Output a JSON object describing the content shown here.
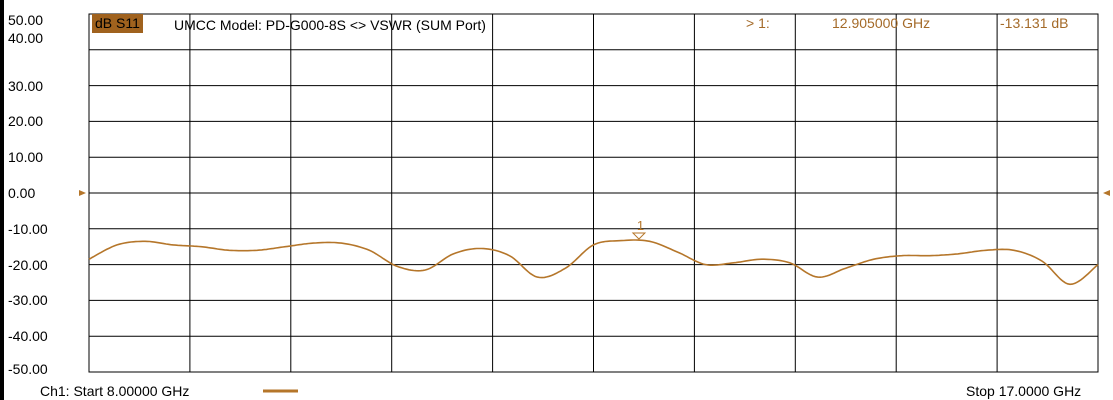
{
  "colors": {
    "trace": "#b5762a",
    "grid": "#000000",
    "background": "#ffffff",
    "badge_bg": "#a0621e",
    "marker_text": "#a46a28"
  },
  "header": {
    "trace_badge": "dB S11",
    "title": "UMCC Model: PD-G000-8S <> VSWR (SUM Port)",
    "marker_index": "> 1:",
    "marker_freq": "12.905000 GHz",
    "marker_value": "-13.131 dB"
  },
  "footer": {
    "start_label": "Ch1: Start  8.00000 GHz",
    "stop_label": "Stop  17.0000 GHz"
  },
  "markers": [
    {
      "label": "1",
      "x": 12.905,
      "y": -13.131
    }
  ],
  "chart_data": {
    "type": "line",
    "xlim": [
      8.0,
      17.0
    ],
    "ylim": [
      -50,
      50
    ],
    "yticks": [
      "50.00",
      "40.00",
      "30.00",
      "20.00",
      "10.00",
      "0.00",
      "-10.00",
      "-20.00",
      "-30.00",
      "-40.00",
      "-50.00"
    ],
    "grid": true,
    "series": [
      {
        "x": [
          8.0,
          8.25,
          8.5,
          8.75,
          9.0,
          9.25,
          9.5,
          9.75,
          10.0,
          10.25,
          10.5,
          10.75,
          11.0,
          11.25,
          11.5,
          11.75,
          12.0,
          12.25,
          12.5,
          12.75,
          13.0,
          13.25,
          13.5,
          13.75,
          14.0,
          14.25,
          14.5,
          14.75,
          15.0,
          15.25,
          15.5,
          15.75,
          16.0,
          16.25,
          16.5,
          16.75,
          17.0
        ],
        "y": [
          -18.5,
          -14.5,
          -13.5,
          -14.5,
          -15.0,
          -16.0,
          -16.0,
          -15.0,
          -14.0,
          -14.0,
          -16.0,
          -20.5,
          -21.5,
          -17.0,
          -15.5,
          -17.5,
          -23.5,
          -21.0,
          -14.5,
          -13.3,
          -13.5,
          -16.5,
          -20.0,
          -19.5,
          -18.5,
          -19.5,
          -23.5,
          -21.0,
          -18.5,
          -17.5,
          -17.5,
          -17.0,
          -16.0,
          -16.0,
          -19.0,
          -25.5,
          -20.0
        ]
      }
    ]
  }
}
